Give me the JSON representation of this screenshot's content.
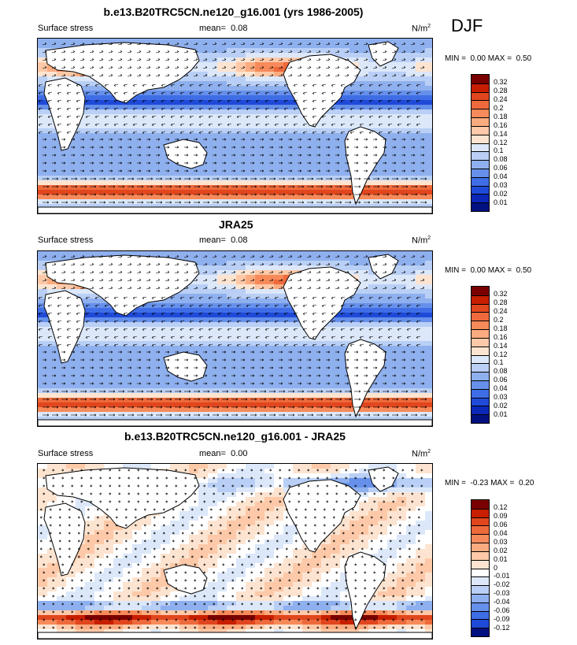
{
  "header": {
    "season": "DJF"
  },
  "panels": [
    {
      "title": "b.e13.B20TRC5CN.ne120_g16.001 (yrs 1986-2005)",
      "left_label": "Surface stress",
      "mean_label": "mean=",
      "mean_value": "0.08",
      "units": "N/m",
      "units_sup": "2",
      "min_label": "MIN =",
      "min_value": "0.00",
      "max_label": "MAX =",
      "max_value": "0.50",
      "levels": [
        "0.32",
        "0.28",
        "0.24",
        "0.2",
        "0.18",
        "0.16",
        "0.14",
        "0.12",
        "0.1",
        "0.08",
        "0.06",
        "0.04",
        "0.03",
        "0.02",
        "0.01"
      ],
      "colors": [
        "#7a0000",
        "#c81e00",
        "#e1461e",
        "#ee6a3c",
        "#f78a5a",
        "#fbab80",
        "#fdc9a8",
        "#fde4d0",
        "#dce8fa",
        "#b9cff5",
        "#8fb0ee",
        "#6690ea",
        "#3f6de6",
        "#1f4ad8",
        "#0a27b8",
        "#001080"
      ]
    },
    {
      "title": "JRA25",
      "left_label": "Surface stress",
      "mean_label": "mean=",
      "mean_value": "0.08",
      "units": "N/m",
      "units_sup": "2",
      "min_label": "MIN =",
      "min_value": "0.00",
      "max_label": "MAX =",
      "max_value": "0.50",
      "levels": [
        "0.32",
        "0.28",
        "0.24",
        "0.2",
        "0.18",
        "0.16",
        "0.14",
        "0.12",
        "0.1",
        "0.08",
        "0.06",
        "0.04",
        "0.03",
        "0.02",
        "0.01"
      ],
      "colors": [
        "#7a0000",
        "#c81e00",
        "#e1461e",
        "#ee6a3c",
        "#f78a5a",
        "#fbab80",
        "#fdc9a8",
        "#fde4d0",
        "#dce8fa",
        "#b9cff5",
        "#8fb0ee",
        "#6690ea",
        "#3f6de6",
        "#1f4ad8",
        "#0a27b8",
        "#001080"
      ]
    },
    {
      "title": "b.e13.B20TRC5CN.ne120_g16.001 - JRA25",
      "left_label": "Surface stress",
      "mean_label": "mean=",
      "mean_value": "0.00",
      "units": "N/m",
      "units_sup": "2",
      "min_label": "MIN =",
      "min_value": "-0.23",
      "max_label": "MAX =",
      "max_value": "0.20",
      "levels": [
        "0.12",
        "0.09",
        "0.06",
        "0.04",
        "0.03",
        "0.02",
        "0.01",
        "0",
        "-0.01",
        "-0.02",
        "-0.03",
        "-0.04",
        "-0.06",
        "-0.09",
        "-0.12"
      ],
      "colors": [
        "#7a0000",
        "#c81e00",
        "#e1461e",
        "#ee6a3c",
        "#f78a5a",
        "#fbab80",
        "#fdc9a8",
        "#fde4d0",
        "#ffffff",
        "#dce8fa",
        "#b9cff5",
        "#8fb0ee",
        "#6690ea",
        "#3f6de6",
        "#1f4ad8",
        "#001080"
      ]
    }
  ]
}
